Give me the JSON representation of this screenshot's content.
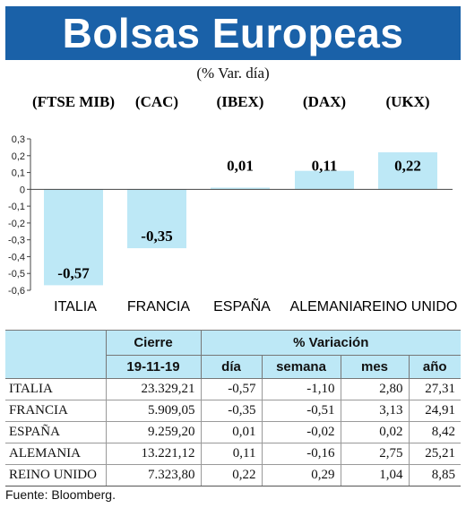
{
  "header": {
    "title": "Bolsas Europeas",
    "subtitle": "(% Var. día)"
  },
  "chart_data": {
    "type": "bar",
    "categories": [
      "ITALIA",
      "FRANCIA",
      "ESPAÑA",
      "ALEMANIA",
      "REINO UNIDO"
    ],
    "indices": [
      "(FTSE MIB)",
      "(CAC)",
      "(IBEX)",
      "(DAX)",
      "(UKX)"
    ],
    "values": [
      -0.57,
      -0.35,
      0.01,
      0.11,
      0.22
    ],
    "value_labels": [
      "-0,57",
      "-0,35",
      "0,01",
      "0,11",
      "0,22"
    ],
    "ylim": [
      -0.6,
      0.3
    ],
    "y_ticks": [
      0.3,
      0.2,
      0.1,
      0,
      -0.1,
      -0.2,
      -0.3,
      -0.4,
      -0.5,
      -0.6
    ],
    "y_tick_labels": [
      "0,3",
      "0,2",
      "0,1",
      "0",
      "-0,1",
      "-0,2",
      "-0,3",
      "-0,4",
      "-0,5",
      "-0,6"
    ],
    "bar_color": "#bde8f6",
    "grid": false
  },
  "table": {
    "group_headers": {
      "close": "Cierre",
      "variation": "% Variación"
    },
    "columns": {
      "date": "19-11-19",
      "day": "día",
      "week": "semana",
      "month": "mes",
      "year": "año"
    },
    "rows": [
      {
        "name": "ITALIA",
        "close": "23.329,21",
        "day": "-0,57",
        "week": "-1,10",
        "month": "2,80",
        "year": "27,31"
      },
      {
        "name": "FRANCIA",
        "close": "5.909,05",
        "day": "-0,35",
        "week": "-0,51",
        "month": "3,13",
        "year": "24,91"
      },
      {
        "name": "ESPAÑA",
        "close": "9.259,20",
        "day": "0,01",
        "week": "-0,02",
        "month": "0,02",
        "year": "8,42"
      },
      {
        "name": "ALEMANIA",
        "close": "13.221,12",
        "day": "0,11",
        "week": "-0,16",
        "month": "2,75",
        "year": "25,21"
      },
      {
        "name": "REINO UNIDO",
        "close": "7.323,80",
        "day": "0,22",
        "week": "0,29",
        "month": "1,04",
        "year": "8,85"
      }
    ]
  },
  "source": "Fuente: Bloomberg.",
  "colors": {
    "title_bg": "#1a61a8",
    "accent_light": "#bde8f6"
  }
}
